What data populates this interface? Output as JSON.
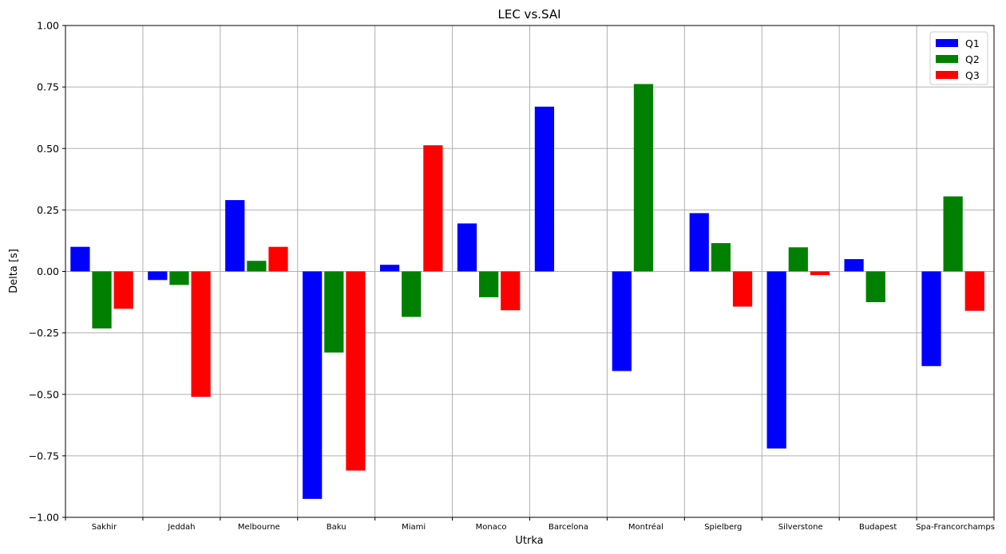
{
  "chart_data": {
    "type": "bar",
    "title": "LEC vs.SAI",
    "xlabel": "Utrka",
    "ylabel": "Delta [s]",
    "ylim": [
      -1.0,
      1.0
    ],
    "yticks": [
      "−1.00",
      "−0.75",
      "−0.50",
      "−0.25",
      "0.00",
      "0.25",
      "0.50",
      "0.75",
      "1.00"
    ],
    "grid": true,
    "legend_position": "top-right",
    "categories": [
      "Sakhir",
      "Jeddah",
      "Melbourne",
      "Baku",
      "Miami",
      "Monaco",
      "Barcelona",
      "Montréal",
      "Spielberg",
      "Silverstone",
      "Budapest",
      "Spa-Francorchamps"
    ],
    "series": [
      {
        "name": "Q1",
        "color": "#0000ff",
        "values": [
          0.1,
          -0.035,
          0.29,
          -0.925,
          0.027,
          0.195,
          0.67,
          -0.405,
          0.237,
          -0.72,
          0.05,
          -0.385
        ]
      },
      {
        "name": "Q2",
        "color": "#008000",
        "values": [
          -0.232,
          -0.055,
          0.043,
          -0.33,
          -0.185,
          -0.105,
          null,
          0.762,
          0.115,
          0.098,
          -0.125,
          0.305
        ]
      },
      {
        "name": "Q3",
        "color": "#ff0000",
        "values": [
          -0.152,
          -0.51,
          0.1,
          -0.81,
          0.513,
          -0.158,
          null,
          null,
          -0.143,
          -0.015,
          null,
          -0.16
        ]
      }
    ]
  }
}
